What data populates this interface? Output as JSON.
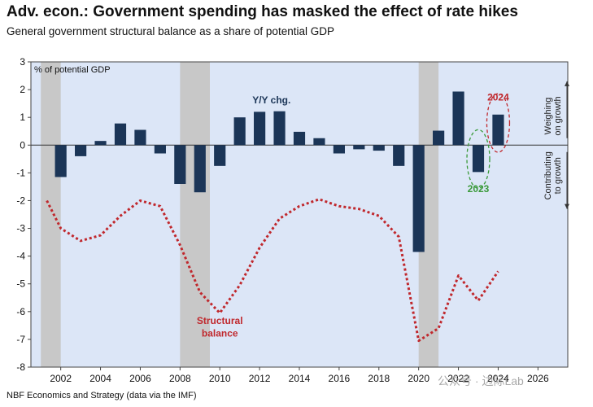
{
  "header": {
    "title": "Adv. econ.: Government spending has masked the effect of rate hikes",
    "subtitle": "General government structural balance as a share of potential GDP"
  },
  "footer": {
    "source": "NBF Economics and Strategy (data via the IMF)",
    "watermark": "公众号 · 边际Lab"
  },
  "chart_data": {
    "type": "bar",
    "title": "Adv. econ.: Government spending has masked the effect of rate hikes",
    "subtitle": "General government structural balance as a share of potential GDP",
    "ylabel": "% of potential GDP",
    "ylim": [
      -8,
      3
    ],
    "yticks": [
      -8,
      -7,
      -6,
      -5,
      -4,
      -3,
      -2,
      -1,
      0,
      1,
      2,
      3
    ],
    "xlim": [
      2000.5,
      2027.5
    ],
    "xticks": [
      2002,
      2004,
      2006,
      2008,
      2010,
      2012,
      2014,
      2016,
      2018,
      2020,
      2022,
      2024,
      2026
    ],
    "background_color": "#dce6f7",
    "recession_shading": [
      [
        2001,
        2002
      ],
      [
        2008,
        2009.5
      ],
      [
        2020,
        2021
      ]
    ],
    "series": [
      {
        "name": "Y/Y chg.",
        "type": "bar",
        "color": "#1b3557",
        "x": [
          2002,
          2003,
          2004,
          2005,
          2006,
          2007,
          2008,
          2009,
          2010,
          2011,
          2012,
          2013,
          2014,
          2015,
          2016,
          2017,
          2018,
          2019,
          2020,
          2021,
          2022,
          2023,
          2024
        ],
        "values": [
          -1.15,
          -0.4,
          0.15,
          0.78,
          0.55,
          -0.3,
          -1.4,
          -1.7,
          -0.75,
          1.0,
          1.2,
          1.22,
          0.48,
          0.25,
          -0.3,
          -0.15,
          -0.2,
          -0.75,
          -3.85,
          0.52,
          1.93,
          -0.97,
          1.1
        ]
      },
      {
        "name": "Structural balance",
        "type": "line",
        "style": "dotted",
        "color": "#c0282d",
        "x": [
          2001.3,
          2002,
          2003,
          2004,
          2005,
          2006,
          2007,
          2008,
          2009,
          2010,
          2011,
          2012,
          2013,
          2014,
          2015,
          2016,
          2017,
          2018,
          2019,
          2020,
          2021,
          2022,
          2023,
          2024
        ],
        "values": [
          -2.0,
          -3.0,
          -3.45,
          -3.25,
          -2.55,
          -2.0,
          -2.2,
          -3.6,
          -5.3,
          -6.05,
          -5.05,
          -3.7,
          -2.65,
          -2.2,
          -1.95,
          -2.2,
          -2.3,
          -2.55,
          -3.3,
          -7.05,
          -6.6,
          -4.7,
          -5.6,
          -4.55
        ]
      }
    ],
    "annotations": [
      {
        "text": "Y/Y chg.",
        "color": "#1b3557"
      },
      {
        "text": "Structural",
        "color": "#c0282d"
      },
      {
        "text": "balance",
        "color": "#c0282d"
      },
      {
        "text": "2024",
        "color": "#c0282d"
      },
      {
        "text": "2023",
        "color": "#3a9a3a"
      },
      {
        "text": "Weighing",
        "color": "#222222"
      },
      {
        "text": "on growth",
        "color": "#222222"
      },
      {
        "text": "Contributing",
        "color": "#222222"
      },
      {
        "text": "to growth",
        "color": "#222222"
      }
    ]
  }
}
